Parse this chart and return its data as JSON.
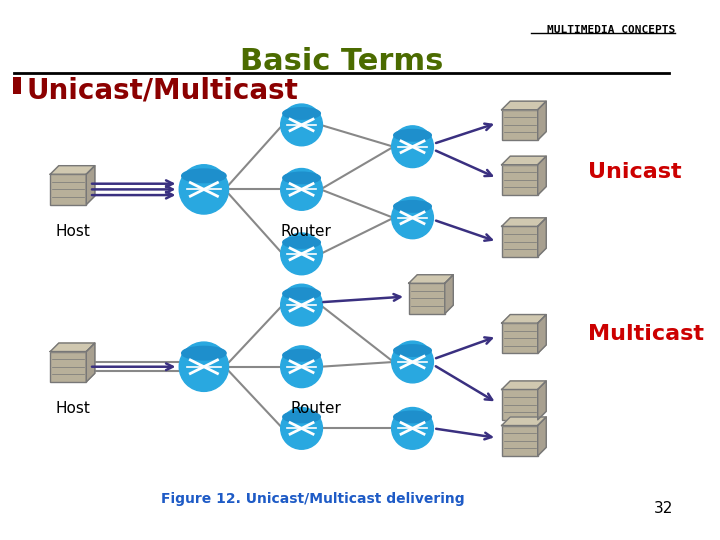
{
  "title": "Basic Terms",
  "header": "MULTIMEDIA CONCEPTS",
  "bullet": "Unicast/Multicast",
  "bullet_color": "#8B0000",
  "title_color": "#4B6B00",
  "header_color": "#000000",
  "unicast_label": "Unicast",
  "multicast_label": "Multicast",
  "label_color": "#CC0000",
  "router_color": "#29A8E0",
  "host_color": "#B8B09A",
  "arrow_color": "#3A3080",
  "line_color": "#888888",
  "figure_caption": "Figure 12. Unicast/Multicast delivering",
  "figure_caption_color": "#1E5BC6",
  "page_number": "32",
  "background_color": "#FFFFFF"
}
